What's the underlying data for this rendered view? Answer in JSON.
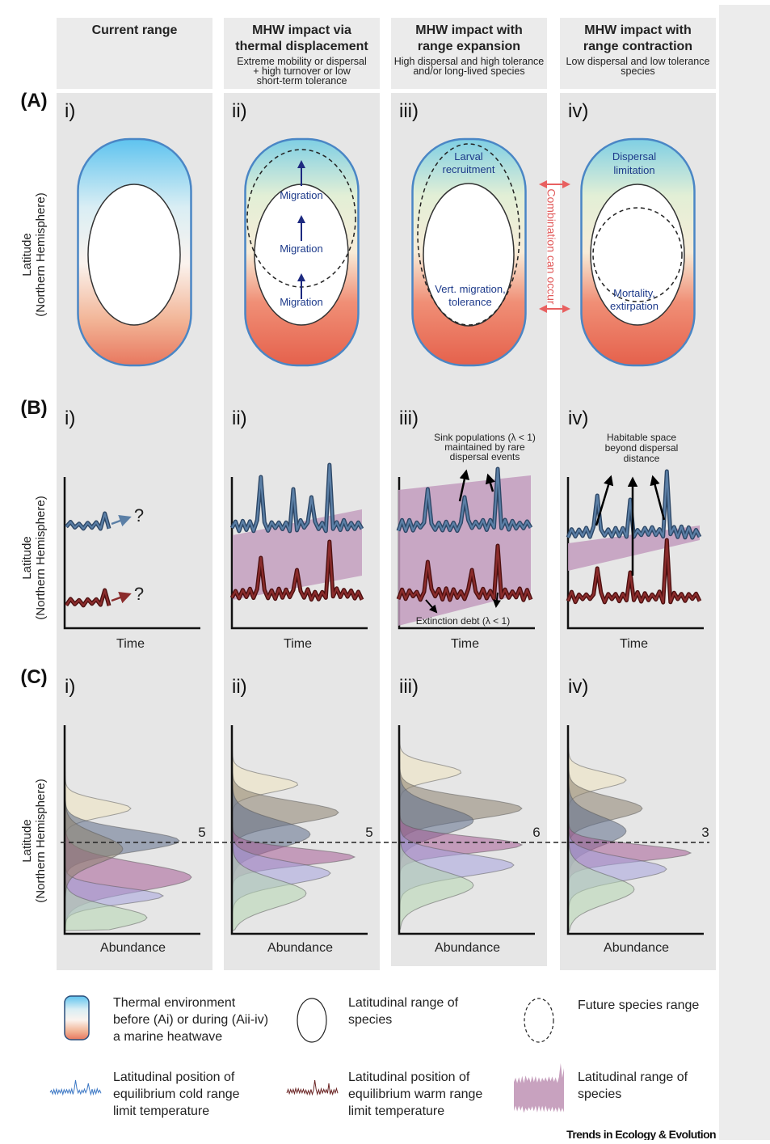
{
  "header": {
    "columns": [
      {
        "title": [
          "Current range"
        ]
      },
      {
        "title": [
          "MHW impact via",
          "thermal displacement"
        ],
        "subtitle": [
          "Extreme mobility or dispersal",
          "+ high turnover or low",
          "short-term tolerance"
        ]
      },
      {
        "title": [
          "MHW impact with",
          "range expansion"
        ],
        "subtitle": [
          "High dispersal and high tolerance",
          "and/or long-lived species"
        ]
      },
      {
        "title": [
          "MHW impact with",
          "range contraction"
        ],
        "subtitle": [
          "Low dispersal and low tolerance",
          "species"
        ]
      }
    ]
  },
  "rows": [
    {
      "label": "(A)",
      "axis_label": [
        "Latitude",
        "(Northern Hemisphere)"
      ],
      "panels": [
        "i)",
        "ii)",
        "iii)",
        "iv)"
      ]
    },
    {
      "label": "(B)",
      "axis_label": [
        "Latitude",
        "(Northern Hemisphere)"
      ],
      "panels": [
        "i)",
        "ii)",
        "iii)",
        "iv)"
      ],
      "x_labels": [
        "Time",
        "Time",
        "Time",
        "Time"
      ]
    },
    {
      "label": "(C)",
      "axis_label": [
        "Latitude",
        "(Northern Hemisphere)"
      ],
      "panels": [
        "i)",
        "ii)",
        "iii)",
        "iv)"
      ],
      "x_labels": [
        "Abundance",
        "Abundance",
        "Abundance",
        "Abundance"
      ],
      "counts": [
        5,
        5,
        6,
        3
      ]
    }
  ],
  "row_a_annotations": {
    "migration": [
      "Migration",
      "Migration",
      "Migration"
    ],
    "larval": [
      "Larval",
      "recruitment"
    ],
    "vert": [
      "Vert. migration,",
      "tolerance"
    ],
    "dispersal": [
      "Dispersal",
      "limitation"
    ],
    "mortality": [
      "Mortality,",
      "extirpation"
    ],
    "combination": "Combination can occur"
  },
  "row_b_annotations": {
    "question": [
      "?",
      "?"
    ],
    "sink": [
      "Sink populations (λ < 1)",
      "maintained by rare",
      "dispersal events"
    ],
    "extinction": "Extinction debt (λ < 1)",
    "habitable": [
      "Habitable space",
      "beyond dispersal",
      "distance"
    ]
  },
  "legend": [
    {
      "text": [
        "Thermal environment",
        "before (Ai) or during (Aii-iv)",
        "a marine heatwave"
      ]
    },
    {
      "text": [
        "Latitudinal range of",
        "species"
      ]
    },
    {
      "text": [
        "Future species range"
      ]
    },
    {
      "text": [
        "Latitudinal position of",
        "equilibrium cold range",
        "limit temperature"
      ]
    },
    {
      "text": [
        "Latitudinal position of",
        "equilibrium warm range",
        "limit temperature"
      ]
    },
    {
      "text": [
        "Latitudinal range of",
        "species"
      ]
    }
  ],
  "source": "Trends in Ecology & Evolution"
}
